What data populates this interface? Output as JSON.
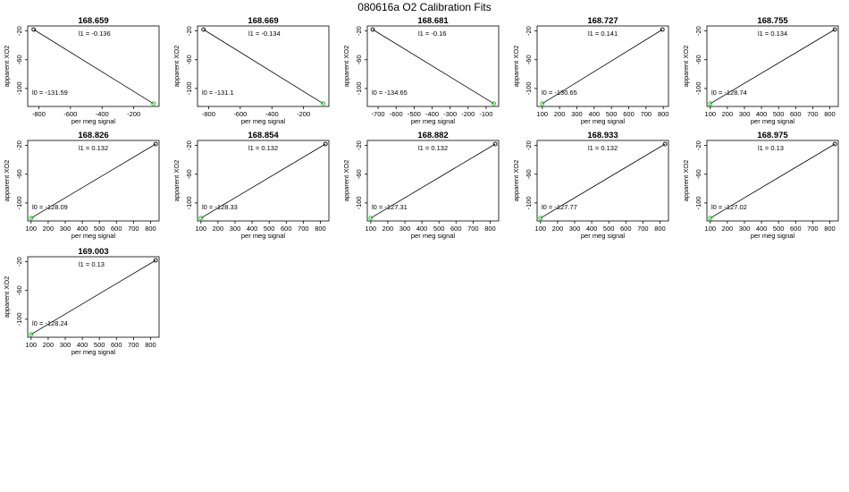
{
  "title": "080616a   O2 Calibration Fits",
  "chart_data": [
    {
      "type": "scatter",
      "title": "168.659",
      "xlabel": "per meg signal",
      "ylabel": "apparent XO2",
      "xlim": [
        -870,
        -40
      ],
      "ylim": [
        -125,
        -13
      ],
      "xticks": [
        -800,
        -600,
        -400,
        -200
      ],
      "xtick_labels": [
        "-800",
        "-600",
        "-400",
        "-200"
      ],
      "yticks": [
        -20,
        -60,
        -100
      ],
      "ytick_labels": [
        "-20",
        "-60",
        "-100"
      ],
      "points": [
        [
          -832,
          -18
        ],
        [
          -76,
          -121
        ]
      ],
      "point_colors": [
        "#000000",
        "#00cc00"
      ],
      "fit_line": [
        [
          -832,
          -18
        ],
        [
          -76,
          -121
        ]
      ],
      "annotations": {
        "l1": "l1 =  -0.136",
        "l0": "l0 =  -131.59"
      }
    },
    {
      "type": "scatter",
      "title": "168.669",
      "xlabel": "per meg signal",
      "ylabel": "apparent XO2",
      "xlim": [
        -870,
        -40
      ],
      "ylim": [
        -125,
        -13
      ],
      "xticks": [
        -800,
        -600,
        -400,
        -200
      ],
      "xtick_labels": [
        "-800",
        "-600",
        "-400",
        "-200"
      ],
      "yticks": [
        -20,
        -60,
        -100
      ],
      "ytick_labels": [
        "-20",
        "-60",
        "-100"
      ],
      "points": [
        [
          -832,
          -18
        ],
        [
          -76,
          -121
        ]
      ],
      "point_colors": [
        "#000000",
        "#00cc00"
      ],
      "fit_line": [
        [
          -832,
          -18
        ],
        [
          -76,
          -121
        ]
      ],
      "annotations": {
        "l1": "l1 =  -0.134",
        "l0": "l0 =  -131.1"
      }
    },
    {
      "type": "scatter",
      "title": "168.681",
      "xlabel": "per meg signal",
      "ylabel": "apparent XO2",
      "xlim": [
        -760,
        -30
      ],
      "ylim": [
        -125,
        -13
      ],
      "xticks": [
        -700,
        -600,
        -500,
        -400,
        -300,
        -200,
        -100
      ],
      "xtick_labels": [
        "-700",
        "-600",
        "-500",
        "-400",
        "-300",
        "-200",
        "-100"
      ],
      "yticks": [
        -20,
        -60,
        -100
      ],
      "ytick_labels": [
        "-20",
        "-60",
        "-100"
      ],
      "points": [
        [
          -730,
          -18
        ],
        [
          -57,
          -121
        ]
      ],
      "point_colors": [
        "#000000",
        "#00cc00"
      ],
      "fit_line": [
        [
          -730,
          -18
        ],
        [
          -57,
          -121
        ]
      ],
      "annotations": {
        "l1": "l1 =  -0.16",
        "l0": "l0 =  -134.65"
      }
    },
    {
      "type": "scatter",
      "title": "168.727",
      "xlabel": "per meg signal",
      "ylabel": "apparent XO2",
      "xlim": [
        70,
        830
      ],
      "ylim": [
        -125,
        -13
      ],
      "xticks": [
        100,
        200,
        300,
        400,
        500,
        600,
        700,
        800
      ],
      "xtick_labels": [
        "100",
        "200",
        "300",
        "400",
        "500",
        "600",
        "700",
        "800"
      ],
      "yticks": [
        -20,
        -60,
        -100
      ],
      "ytick_labels": [
        "-20",
        "-60",
        "-100"
      ],
      "points": [
        [
          100,
          -121
        ],
        [
          795,
          -18
        ]
      ],
      "point_colors": [
        "#00cc00",
        "#000000"
      ],
      "fit_line": [
        [
          100,
          -121
        ],
        [
          795,
          -18
        ]
      ],
      "annotations": {
        "l1": "l1 =  0.141",
        "l0": "l0 =  -130.65"
      }
    },
    {
      "type": "scatter",
      "title": "168.755",
      "xlabel": "per meg signal",
      "ylabel": "apparent XO2",
      "xlim": [
        80,
        850
      ],
      "ylim": [
        -125,
        -13
      ],
      "xticks": [
        100,
        200,
        300,
        400,
        500,
        600,
        700,
        800
      ],
      "xtick_labels": [
        "100",
        "200",
        "300",
        "400",
        "500",
        "600",
        "700",
        "800"
      ],
      "yticks": [
        -20,
        -60,
        -100
      ],
      "ytick_labels": [
        "-20",
        "-60",
        "-100"
      ],
      "points": [
        [
          100,
          -121
        ],
        [
          830,
          -18
        ]
      ],
      "point_colors": [
        "#00cc00",
        "#000000"
      ],
      "fit_line": [
        [
          100,
          -121
        ],
        [
          830,
          -18
        ]
      ],
      "annotations": {
        "l1": "l1 =  0.134",
        "l0": "l0 =  -128.74"
      }
    },
    {
      "type": "scatter",
      "title": "168.826",
      "xlabel": "per meg signal",
      "ylabel": "apparent XO2",
      "xlim": [
        80,
        850
      ],
      "ylim": [
        -125,
        -13
      ],
      "xticks": [
        100,
        200,
        300,
        400,
        500,
        600,
        700,
        800
      ],
      "xtick_labels": [
        "100",
        "200",
        "300",
        "400",
        "500",
        "600",
        "700",
        "800"
      ],
      "yticks": [
        -20,
        -60,
        -100
      ],
      "ytick_labels": [
        "-20",
        "-60",
        "-100"
      ],
      "points": [
        [
          100,
          -121
        ],
        [
          830,
          -18
        ]
      ],
      "point_colors": [
        "#00cc00",
        "#000000"
      ],
      "fit_line": [
        [
          100,
          -121
        ],
        [
          830,
          -18
        ]
      ],
      "annotations": {
        "l1": "l1 =  0.132",
        "l0": "l0 =  -128.09"
      }
    },
    {
      "type": "scatter",
      "title": "168.854",
      "xlabel": "per meg signal",
      "ylabel": "apparent XO2",
      "xlim": [
        80,
        850
      ],
      "ylim": [
        -125,
        -13
      ],
      "xticks": [
        100,
        200,
        300,
        400,
        500,
        600,
        700,
        800
      ],
      "xtick_labels": [
        "100",
        "200",
        "300",
        "400",
        "500",
        "600",
        "700",
        "800"
      ],
      "yticks": [
        -20,
        -60,
        -100
      ],
      "ytick_labels": [
        "-20",
        "-60",
        "-100"
      ],
      "points": [
        [
          100,
          -121
        ],
        [
          830,
          -18
        ]
      ],
      "point_colors": [
        "#00cc00",
        "#000000"
      ],
      "fit_line": [
        [
          100,
          -121
        ],
        [
          830,
          -18
        ]
      ],
      "annotations": {
        "l1": "l1 =  0.132",
        "l0": "l0 =  -128.33"
      }
    },
    {
      "type": "scatter",
      "title": "168.882",
      "xlabel": "per meg signal",
      "ylabel": "apparent XO2",
      "xlim": [
        80,
        850
      ],
      "ylim": [
        -125,
        -13
      ],
      "xticks": [
        100,
        200,
        300,
        400,
        500,
        600,
        700,
        800
      ],
      "xtick_labels": [
        "100",
        "200",
        "300",
        "400",
        "500",
        "600",
        "700",
        "800"
      ],
      "yticks": [
        -20,
        -60,
        -100
      ],
      "ytick_labels": [
        "-20",
        "-60",
        "-100"
      ],
      "points": [
        [
          100,
          -121
        ],
        [
          830,
          -18
        ]
      ],
      "point_colors": [
        "#00cc00",
        "#000000"
      ],
      "fit_line": [
        [
          100,
          -121
        ],
        [
          830,
          -18
        ]
      ],
      "annotations": {
        "l1": "l1 =  0.132",
        "l0": "l0 =  -127.31"
      }
    },
    {
      "type": "scatter",
      "title": "168.933",
      "xlabel": "per meg signal",
      "ylabel": "apparent XO2",
      "xlim": [
        80,
        850
      ],
      "ylim": [
        -125,
        -13
      ],
      "xticks": [
        100,
        200,
        300,
        400,
        500,
        600,
        700,
        800
      ],
      "xtick_labels": [
        "100",
        "200",
        "300",
        "400",
        "500",
        "600",
        "700",
        "800"
      ],
      "yticks": [
        -20,
        -60,
        -100
      ],
      "ytick_labels": [
        "-20",
        "-60",
        "-100"
      ],
      "points": [
        [
          100,
          -121
        ],
        [
          830,
          -18
        ]
      ],
      "point_colors": [
        "#00cc00",
        "#000000"
      ],
      "fit_line": [
        [
          100,
          -121
        ],
        [
          830,
          -18
        ]
      ],
      "annotations": {
        "l1": "l1 =  0.132",
        "l0": "l0 =  -127.77"
      }
    },
    {
      "type": "scatter",
      "title": "168.975",
      "xlabel": "per meg signal",
      "ylabel": "apparent XO2",
      "xlim": [
        80,
        850
      ],
      "ylim": [
        -125,
        -13
      ],
      "xticks": [
        100,
        200,
        300,
        400,
        500,
        600,
        700,
        800
      ],
      "xtick_labels": [
        "100",
        "200",
        "300",
        "400",
        "500",
        "600",
        "700",
        "800"
      ],
      "yticks": [
        -20,
        -60,
        -100
      ],
      "ytick_labels": [
        "-20",
        "-60",
        "-100"
      ],
      "points": [
        [
          100,
          -121
        ],
        [
          830,
          -18
        ]
      ],
      "point_colors": [
        "#00cc00",
        "#000000"
      ],
      "fit_line": [
        [
          100,
          -121
        ],
        [
          830,
          -18
        ]
      ],
      "annotations": {
        "l1": "l1 =  0.13",
        "l0": "l0 =  -127.02"
      }
    },
    {
      "type": "scatter",
      "title": "169.003",
      "xlabel": "per meg signal",
      "ylabel": "apparent XO2",
      "xlim": [
        80,
        850
      ],
      "ylim": [
        -125,
        -13
      ],
      "xticks": [
        100,
        200,
        300,
        400,
        500,
        600,
        700,
        800
      ],
      "xtick_labels": [
        "100",
        "200",
        "300",
        "400",
        "500",
        "600",
        "700",
        "800"
      ],
      "yticks": [
        -20,
        -60,
        -100
      ],
      "ytick_labels": [
        "-20",
        "-60",
        "-100"
      ],
      "points": [
        [
          100,
          -121
        ],
        [
          830,
          -18
        ]
      ],
      "point_colors": [
        "#00cc00",
        "#000000"
      ],
      "fit_line": [
        [
          100,
          -121
        ],
        [
          830,
          -18
        ]
      ],
      "annotations": {
        "l1": "l1 =  0.13",
        "l0": "l0 =  -128.24"
      }
    }
  ]
}
